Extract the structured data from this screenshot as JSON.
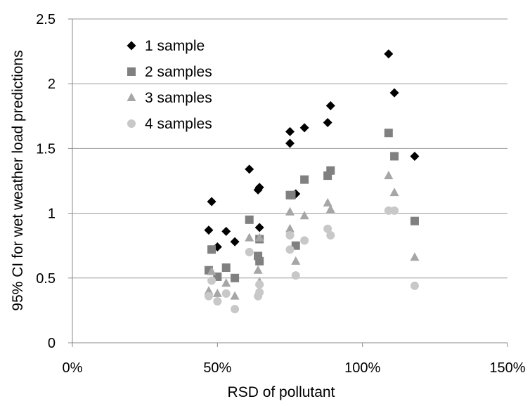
{
  "chart_data": {
    "type": "scatter",
    "title": "",
    "xlabel": "RSD of pollutant",
    "ylabel": "95% CI for wet weather load predictions",
    "xlim": [
      0,
      150
    ],
    "ylim": [
      0,
      2.5
    ],
    "x_ticks": [
      "0%",
      "50%",
      "100%",
      "150%"
    ],
    "y_ticks": [
      "0",
      "0.5",
      "1",
      "1.5",
      "2",
      "2.5"
    ],
    "grid": "horizontal",
    "legend_position": "top-left",
    "series": [
      {
        "name": "1 sample",
        "marker": "diamond",
        "color": "#000000",
        "points": [
          {
            "x": 47,
            "y": 0.87
          },
          {
            "x": 48,
            "y": 1.09
          },
          {
            "x": 50,
            "y": 0.74
          },
          {
            "x": 53,
            "y": 0.86
          },
          {
            "x": 56,
            "y": 0.78
          },
          {
            "x": 61,
            "y": 1.34
          },
          {
            "x": 64,
            "y": 1.18
          },
          {
            "x": 64.5,
            "y": 1.2
          },
          {
            "x": 64.5,
            "y": 0.89
          },
          {
            "x": 75,
            "y": 1.63
          },
          {
            "x": 75,
            "y": 1.54
          },
          {
            "x": 77,
            "y": 1.15
          },
          {
            "x": 80,
            "y": 1.66
          },
          {
            "x": 88,
            "y": 1.7
          },
          {
            "x": 89,
            "y": 1.83
          },
          {
            "x": 109,
            "y": 2.23
          },
          {
            "x": 111,
            "y": 1.93
          },
          {
            "x": 118,
            "y": 1.44
          }
        ]
      },
      {
        "name": "2 samples",
        "marker": "square",
        "color": "#808080",
        "points": [
          {
            "x": 47,
            "y": 0.56
          },
          {
            "x": 48,
            "y": 0.72
          },
          {
            "x": 50,
            "y": 0.51
          },
          {
            "x": 53,
            "y": 0.58
          },
          {
            "x": 56,
            "y": 0.5
          },
          {
            "x": 61,
            "y": 0.95
          },
          {
            "x": 64,
            "y": 0.67
          },
          {
            "x": 64.5,
            "y": 0.8
          },
          {
            "x": 64.5,
            "y": 0.63
          },
          {
            "x": 75,
            "y": 1.14
          },
          {
            "x": 75.5,
            "y": 1.14
          },
          {
            "x": 77,
            "y": 0.75
          },
          {
            "x": 80,
            "y": 1.26
          },
          {
            "x": 88,
            "y": 1.29
          },
          {
            "x": 89,
            "y": 1.33
          },
          {
            "x": 109,
            "y": 1.62
          },
          {
            "x": 111,
            "y": 1.44
          },
          {
            "x": 118,
            "y": 0.94
          }
        ]
      },
      {
        "name": "3 samples",
        "marker": "triangle",
        "color": "#a6a6a6",
        "points": [
          {
            "x": 47,
            "y": 0.4
          },
          {
            "x": 48,
            "y": 0.55
          },
          {
            "x": 50,
            "y": 0.38
          },
          {
            "x": 53,
            "y": 0.46
          },
          {
            "x": 56,
            "y": 0.36
          },
          {
            "x": 61,
            "y": 0.81
          },
          {
            "x": 64,
            "y": 0.56
          },
          {
            "x": 64.5,
            "y": 0.47
          },
          {
            "x": 64.5,
            "y": 0.81
          },
          {
            "x": 75,
            "y": 1.01
          },
          {
            "x": 75,
            "y": 0.88
          },
          {
            "x": 77,
            "y": 0.63
          },
          {
            "x": 80,
            "y": 0.98
          },
          {
            "x": 88,
            "y": 1.08
          },
          {
            "x": 89,
            "y": 1.03
          },
          {
            "x": 109,
            "y": 1.29
          },
          {
            "x": 111,
            "y": 1.16
          },
          {
            "x": 118,
            "y": 0.66
          }
        ]
      },
      {
        "name": "4 samples",
        "marker": "circle",
        "color": "#c8c8c8",
        "points": [
          {
            "x": 47,
            "y": 0.36
          },
          {
            "x": 48,
            "y": 0.48
          },
          {
            "x": 50,
            "y": 0.32
          },
          {
            "x": 53,
            "y": 0.38
          },
          {
            "x": 56,
            "y": 0.26
          },
          {
            "x": 61,
            "y": 0.7
          },
          {
            "x": 64,
            "y": 0.36
          },
          {
            "x": 64.5,
            "y": 0.39
          },
          {
            "x": 64.5,
            "y": 0.45
          },
          {
            "x": 75,
            "y": 0.83
          },
          {
            "x": 75,
            "y": 0.72
          },
          {
            "x": 77,
            "y": 0.52
          },
          {
            "x": 80,
            "y": 0.79
          },
          {
            "x": 88,
            "y": 0.88
          },
          {
            "x": 89,
            "y": 0.83
          },
          {
            "x": 109,
            "y": 1.02
          },
          {
            "x": 111,
            "y": 1.02
          },
          {
            "x": 118,
            "y": 0.44
          }
        ]
      }
    ]
  }
}
